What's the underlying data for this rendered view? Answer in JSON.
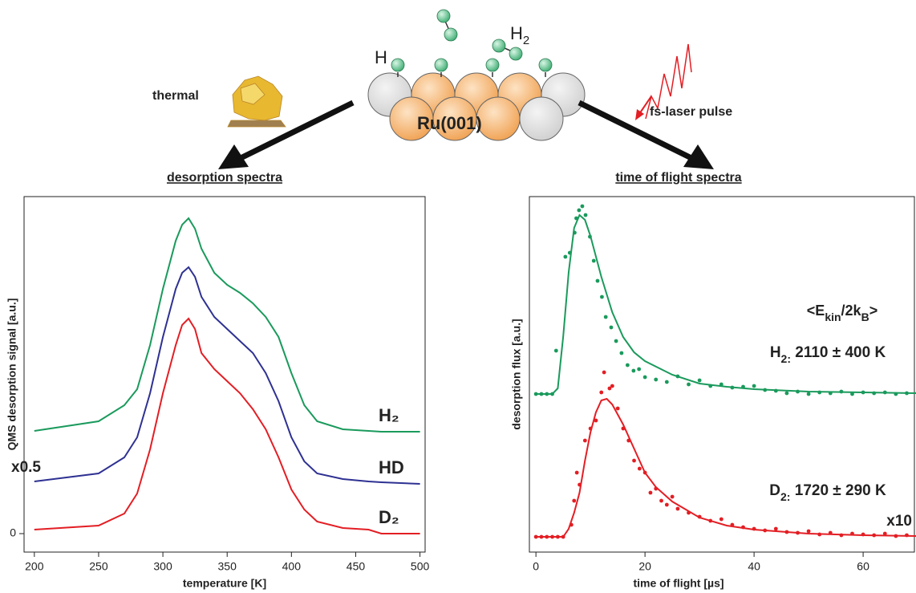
{
  "diagram": {
    "h_label": "H",
    "h2_label": {
      "parts": [
        "H",
        "2"
      ]
    },
    "thermal": "thermal",
    "surface": "Ru(001)",
    "laser": "fs-laser pulse"
  },
  "chart_data": [
    {
      "type": "line",
      "title": "desorption spectra",
      "xlabel": "temperature [K]",
      "ylabel": "QMS desorption signal [a.u.]",
      "xlim": [
        192,
        504
      ],
      "xticks": [
        200,
        250,
        300,
        350,
        400,
        450,
        500
      ],
      "ylim": [
        -0.23,
        4.2
      ],
      "yticks": [
        0
      ],
      "x": [
        200,
        250,
        270,
        280,
        290,
        300,
        310,
        315,
        320,
        325,
        330,
        340,
        350,
        360,
        370,
        380,
        390,
        400,
        410,
        420,
        440,
        460,
        470,
        500
      ],
      "series": [
        {
          "name": "H₂",
          "color": "#1a9a5c",
          "values": [
            1.28,
            1.4,
            1.6,
            1.8,
            2.35,
            3.05,
            3.65,
            3.85,
            3.93,
            3.8,
            3.55,
            3.25,
            3.1,
            3.0,
            2.87,
            2.7,
            2.45,
            2.0,
            1.6,
            1.4,
            1.3,
            1.28,
            1.27,
            1.27
          ]
        },
        {
          "name": "HD",
          "color": "#2e3192",
          "values": [
            0.65,
            0.75,
            0.95,
            1.2,
            1.75,
            2.45,
            3.05,
            3.25,
            3.32,
            3.2,
            2.95,
            2.7,
            2.55,
            2.4,
            2.25,
            2.0,
            1.65,
            1.2,
            0.9,
            0.75,
            0.68,
            0.65,
            0.64,
            0.62
          ]
        },
        {
          "name": "D₂",
          "color": "#e31e24",
          "values": [
            0.05,
            0.1,
            0.25,
            0.5,
            1.05,
            1.75,
            2.35,
            2.6,
            2.68,
            2.55,
            2.25,
            2.05,
            1.9,
            1.75,
            1.55,
            1.3,
            0.95,
            0.55,
            0.3,
            0.15,
            0.07,
            0.05,
            0,
            0
          ]
        }
      ],
      "annotations": [
        {
          "parts": [
            "x0.5"
          ]
        }
      ]
    },
    {
      "type": "scatter",
      "title": "time of flight spectra",
      "xlabel": "time of flight [µs]",
      "ylabel": "desorption flux [a.u.]",
      "xlim": [
        -1.2,
        69.4
      ],
      "xticks": [
        0,
        20,
        40,
        60
      ],
      "ylim": [
        -0.19,
        4.24
      ],
      "series": [
        {
          "style": "markers",
          "color": "#1a9a5c",
          "x": [
            0,
            1,
            2,
            3,
            3.7,
            5.4,
            6.2,
            7.1,
            7.4,
            7.9,
            8.5,
            9.1,
            9.9,
            10.6,
            11.3,
            12.1,
            12.8,
            13.8,
            14.7,
            15.7,
            16.8,
            17.9,
            18.9,
            20,
            22,
            24,
            26,
            28,
            30,
            32,
            34,
            36,
            38,
            40,
            42,
            44,
            46,
            48,
            50,
            52,
            54,
            56,
            58,
            60,
            62,
            64,
            66,
            68,
            70
          ],
          "values": [
            1.78,
            1.78,
            1.78,
            1.78,
            2.32,
            3.49,
            3.54,
            3.79,
            3.97,
            4.07,
            4.12,
            4.01,
            3.74,
            3.44,
            3.19,
            2.99,
            2.74,
            2.61,
            2.44,
            2.29,
            2.14,
            2.07,
            2.09,
            1.99,
            1.96,
            1.93,
            2.0,
            1.9,
            1.95,
            1.88,
            1.9,
            1.86,
            1.87,
            1.88,
            1.83,
            1.82,
            1.79,
            1.81,
            1.78,
            1.8,
            1.79,
            1.81,
            1.78,
            1.8,
            1.79,
            1.8,
            1.78,
            1.79,
            1.8
          ]
        },
        {
          "style": "line",
          "color": "#1a9a5c",
          "x": [
            0,
            3,
            4,
            5,
            6,
            7,
            8,
            9,
            10,
            12,
            14,
            16,
            18,
            20,
            25,
            30,
            35,
            40,
            50,
            60,
            70
          ],
          "values": [
            1.78,
            1.78,
            1.85,
            2.5,
            3.3,
            3.85,
            4.01,
            3.95,
            3.75,
            3.24,
            2.8,
            2.49,
            2.3,
            2.19,
            2.02,
            1.91,
            1.87,
            1.84,
            1.81,
            1.8,
            1.79
          ]
        },
        {
          "style": "markers",
          "color": "#e31e24",
          "x": [
            0,
            1,
            2,
            3,
            4,
            5,
            6.5,
            7,
            7.5,
            8,
            9,
            10,
            11,
            12,
            12.5,
            13.5,
            14,
            15,
            16,
            17,
            18,
            19,
            20,
            21,
            22,
            23,
            24,
            25,
            26,
            28,
            30,
            32,
            34,
            36,
            38,
            40,
            42,
            44,
            46,
            48,
            50,
            52,
            54,
            56,
            58,
            60,
            62,
            64,
            66,
            68
          ],
          "values": [
            0,
            0,
            0,
            0,
            0,
            0,
            0.15,
            0.45,
            0.8,
            0.65,
            1.2,
            1.35,
            1.45,
            1.8,
            2.05,
            1.85,
            1.88,
            1.6,
            1.35,
            1.2,
            0.95,
            0.85,
            0.8,
            0.55,
            0.6,
            0.45,
            0.4,
            0.5,
            0.35,
            0.3,
            0.25,
            0.2,
            0.22,
            0.15,
            0.12,
            0.1,
            0.08,
            0.1,
            0.06,
            0.05,
            0.07,
            0.03,
            0.05,
            0.02,
            0.04,
            0.03,
            0.02,
            0.04,
            0.01,
            0.02
          ]
        },
        {
          "style": "line",
          "color": "#e31e24",
          "x": [
            0,
            5,
            6,
            7,
            8,
            9,
            10,
            11,
            12,
            13,
            14,
            16,
            18,
            20,
            22,
            25,
            30,
            35,
            40,
            50,
            60,
            70
          ],
          "values": [
            0,
            0,
            0.1,
            0.3,
            0.55,
            0.95,
            1.3,
            1.55,
            1.7,
            1.72,
            1.65,
            1.4,
            1.1,
            0.8,
            0.62,
            0.44,
            0.24,
            0.14,
            0.09,
            0.04,
            0.02,
            0.01
          ]
        }
      ],
      "annotations": [
        {
          "parts": [
            "<E",
            "kin",
            "/2k",
            "B",
            ">"
          ]
        },
        {
          "parts": [
            "H",
            "2:",
            " 2110 ± 400 K"
          ]
        },
        {
          "parts": [
            "D",
            "2:",
            " 1720 ± 290 K"
          ]
        },
        {
          "parts": [
            "x10"
          ]
        }
      ]
    }
  ]
}
